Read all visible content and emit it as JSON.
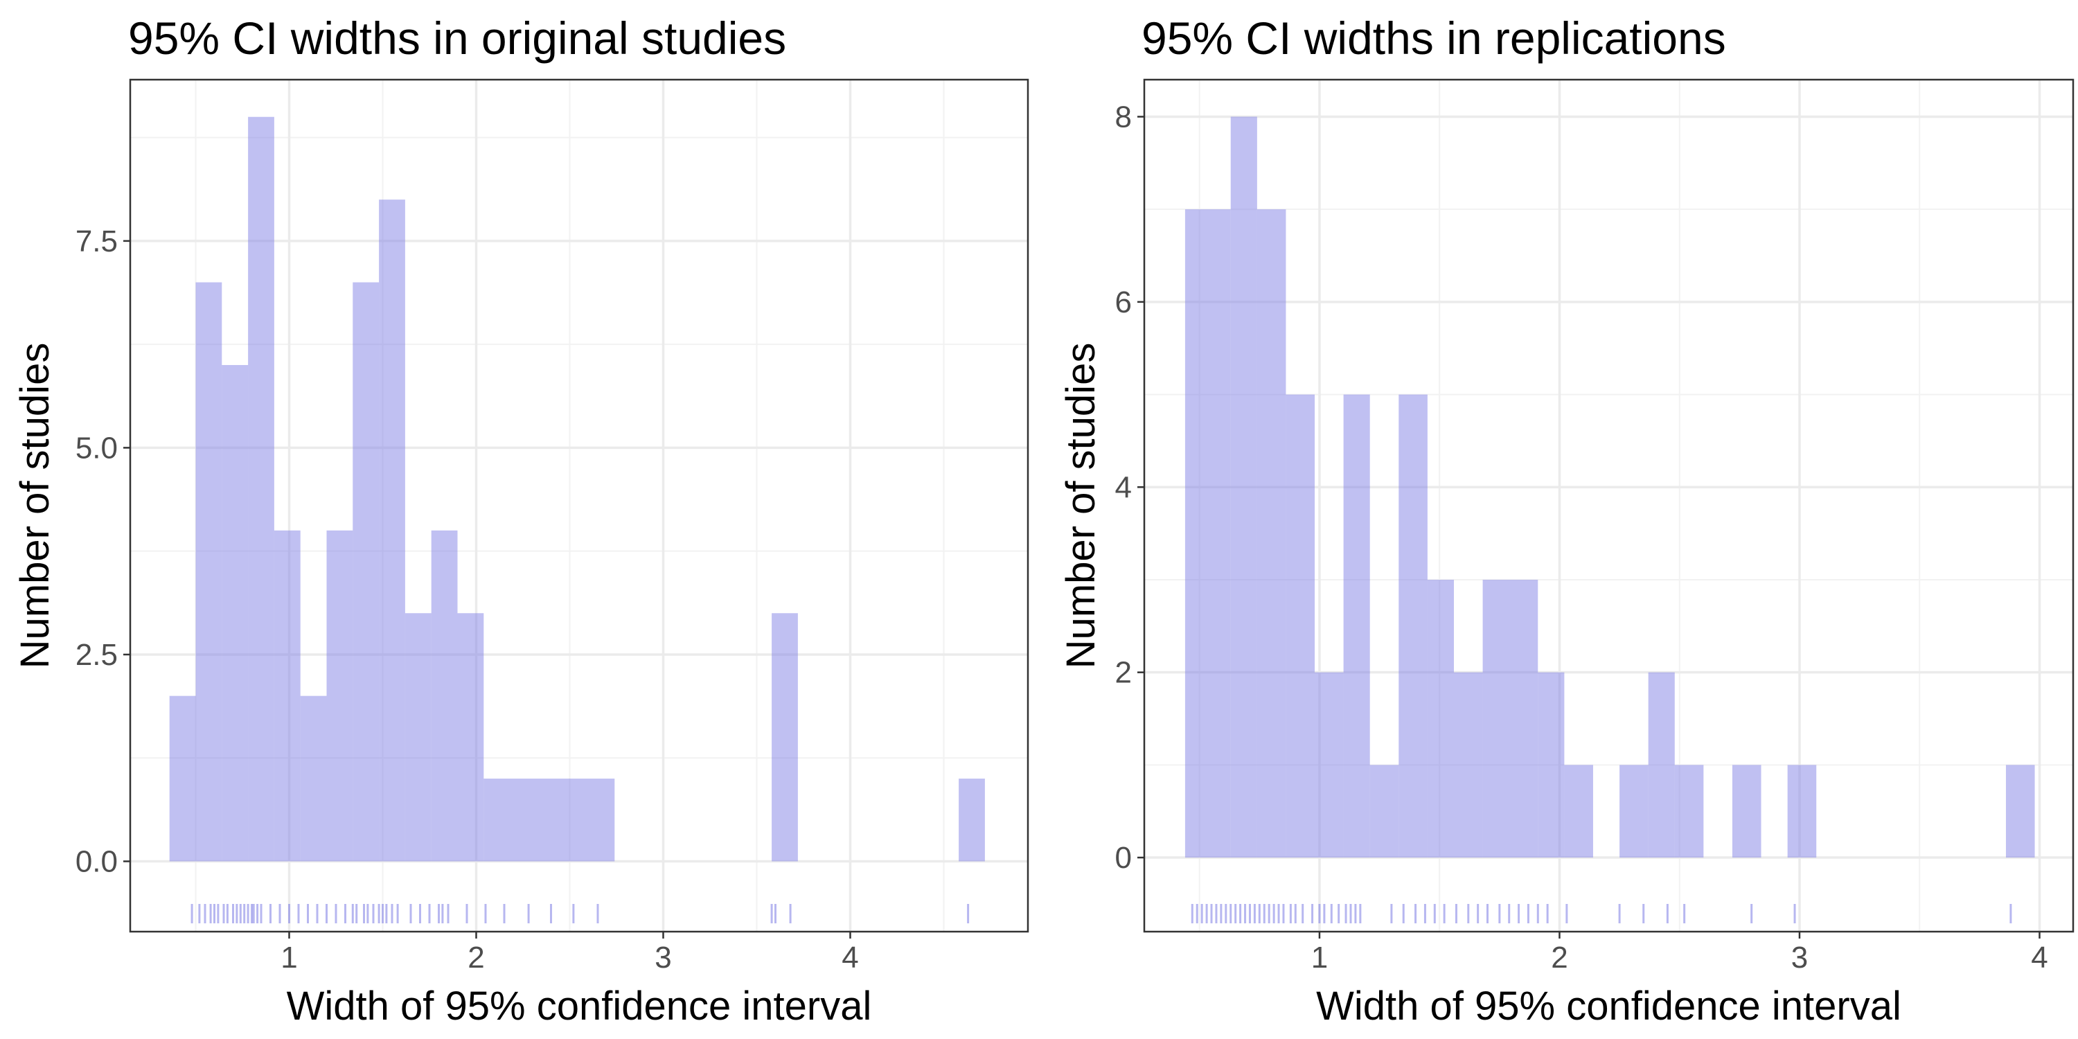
{
  "chart_data": [
    {
      "type": "bar",
      "title": "95% CI widths in original studies",
      "xlabel": "Width of 95% confidence interval",
      "ylabel": "Number of studies",
      "xlim": [
        0.15,
        4.95
      ],
      "ylim": [
        -0.85,
        9.45
      ],
      "xticks": [
        1,
        2,
        3,
        4
      ],
      "xtick_labels": [
        "1",
        "2",
        "3",
        "4"
      ],
      "yticks": [
        0,
        2.5,
        5,
        7.5
      ],
      "ytick_labels": [
        "0.0",
        "2.5",
        "5.0",
        "7.5"
      ],
      "grid": true,
      "bar_color": "#7b7be3",
      "bins": [
        {
          "x0": 0.36,
          "x1": 0.5,
          "count": 2
        },
        {
          "x0": 0.5,
          "x1": 0.64,
          "count": 7
        },
        {
          "x0": 0.64,
          "x1": 0.78,
          "count": 6
        },
        {
          "x0": 0.78,
          "x1": 0.92,
          "count": 9
        },
        {
          "x0": 0.92,
          "x1": 1.06,
          "count": 4
        },
        {
          "x0": 1.06,
          "x1": 1.2,
          "count": 2
        },
        {
          "x0": 1.2,
          "x1": 1.34,
          "count": 4
        },
        {
          "x0": 1.34,
          "x1": 1.48,
          "count": 7
        },
        {
          "x0": 1.48,
          "x1": 1.62,
          "count": 8
        },
        {
          "x0": 1.62,
          "x1": 1.76,
          "count": 3
        },
        {
          "x0": 1.76,
          "x1": 1.9,
          "count": 4
        },
        {
          "x0": 1.9,
          "x1": 2.04,
          "count": 3
        },
        {
          "x0": 2.04,
          "x1": 2.74,
          "count": 1
        },
        {
          "x0": 3.58,
          "x1": 3.72,
          "count": 3
        },
        {
          "x0": 4.58,
          "x1": 4.72,
          "count": 1
        }
      ],
      "rug": [
        0.48,
        0.52,
        0.55,
        0.58,
        0.6,
        0.62,
        0.65,
        0.67,
        0.7,
        0.72,
        0.74,
        0.76,
        0.78,
        0.8,
        0.81,
        0.83,
        0.85,
        0.9,
        0.95,
        1.0,
        1.05,
        1.1,
        1.15,
        1.2,
        1.25,
        1.3,
        1.34,
        1.36,
        1.4,
        1.42,
        1.45,
        1.48,
        1.5,
        1.52,
        1.55,
        1.58,
        1.65,
        1.7,
        1.75,
        1.8,
        1.82,
        1.85,
        1.95,
        2.05,
        2.15,
        2.28,
        2.4,
        2.52,
        2.65,
        3.58,
        3.6,
        3.68,
        4.63
      ]
    },
    {
      "type": "bar",
      "title": "95% CI widths in replications",
      "xlabel": "Width of 95% confidence interval",
      "ylabel": "Number of studies",
      "xlim": [
        0.27,
        4.14
      ],
      "ylim": [
        -0.8,
        8.4
      ],
      "xticks": [
        1,
        2,
        3,
        4
      ],
      "xtick_labels": [
        "1",
        "2",
        "3",
        "4"
      ],
      "yticks": [
        0,
        2,
        4,
        6,
        8
      ],
      "ytick_labels": [
        "0",
        "2",
        "4",
        "6",
        "8"
      ],
      "grid": true,
      "bar_color": "#7b7be3",
      "bins": [
        {
          "x0": 0.44,
          "x1": 0.63,
          "count": 7
        },
        {
          "x0": 0.63,
          "x1": 0.74,
          "count": 8
        },
        {
          "x0": 0.74,
          "x1": 0.86,
          "count": 7
        },
        {
          "x0": 0.86,
          "x1": 0.98,
          "count": 5
        },
        {
          "x0": 0.98,
          "x1": 1.1,
          "count": 2
        },
        {
          "x0": 1.1,
          "x1": 1.21,
          "count": 5
        },
        {
          "x0": 1.21,
          "x1": 1.33,
          "count": 1
        },
        {
          "x0": 1.33,
          "x1": 1.45,
          "count": 5
        },
        {
          "x0": 1.45,
          "x1": 1.56,
          "count": 3
        },
        {
          "x0": 1.56,
          "x1": 1.68,
          "count": 2
        },
        {
          "x0": 1.68,
          "x1": 1.91,
          "count": 3
        },
        {
          "x0": 1.91,
          "x1": 2.02,
          "count": 2
        },
        {
          "x0": 2.02,
          "x1": 2.14,
          "count": 1
        },
        {
          "x0": 2.25,
          "x1": 2.37,
          "count": 1
        },
        {
          "x0": 2.37,
          "x1": 2.48,
          "count": 2
        },
        {
          "x0": 2.48,
          "x1": 2.6,
          "count": 1
        },
        {
          "x0": 2.72,
          "x1": 2.84,
          "count": 1
        },
        {
          "x0": 2.95,
          "x1": 3.07,
          "count": 1
        },
        {
          "x0": 3.86,
          "x1": 3.98,
          "count": 1
        }
      ],
      "rug": [
        0.47,
        0.49,
        0.51,
        0.53,
        0.55,
        0.57,
        0.59,
        0.61,
        0.63,
        0.65,
        0.67,
        0.69,
        0.71,
        0.73,
        0.75,
        0.77,
        0.79,
        0.81,
        0.83,
        0.85,
        0.88,
        0.9,
        0.93,
        0.97,
        1.0,
        1.02,
        1.05,
        1.08,
        1.11,
        1.13,
        1.15,
        1.17,
        1.3,
        1.35,
        1.4,
        1.44,
        1.48,
        1.52,
        1.57,
        1.62,
        1.66,
        1.7,
        1.75,
        1.79,
        1.83,
        1.87,
        1.91,
        1.95,
        2.03,
        2.25,
        2.35,
        2.45,
        2.52,
        2.8,
        2.98,
        3.88
      ]
    }
  ]
}
